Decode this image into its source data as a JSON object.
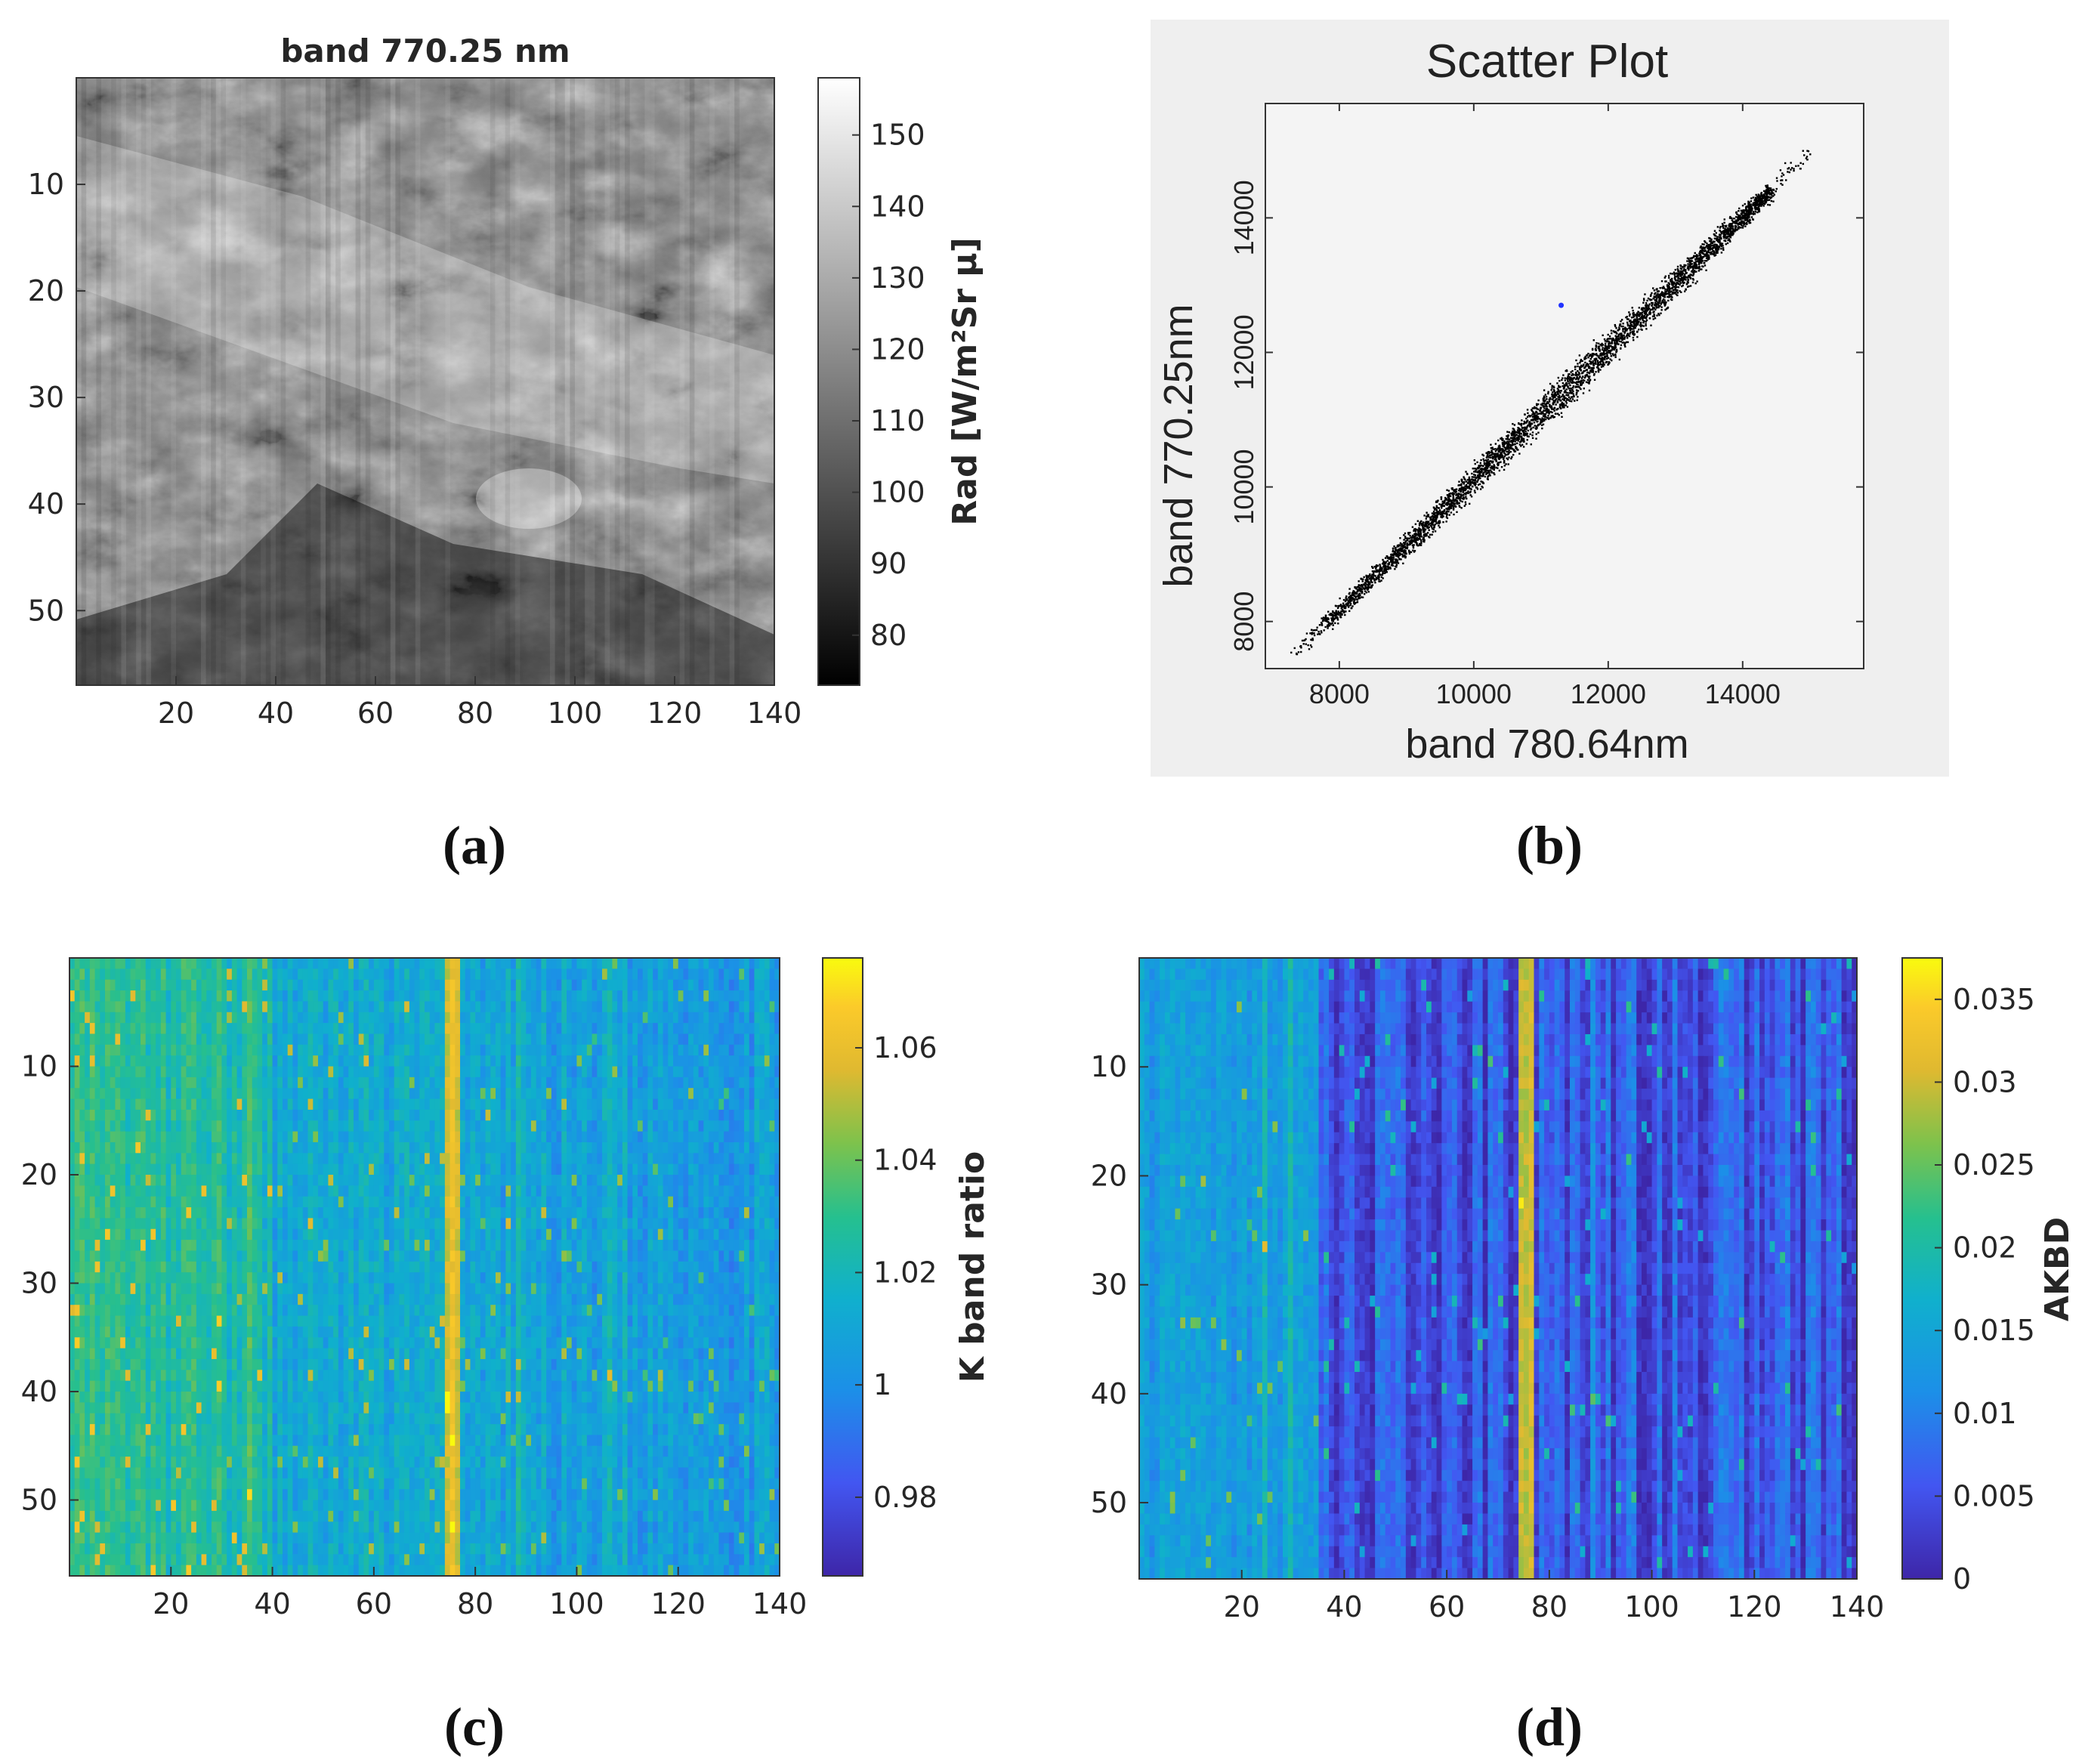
{
  "chart_data": [
    {
      "id": "a",
      "type": "heatmap",
      "title": "band 770.25 nm",
      "colormap": "gray",
      "x_ticks": [
        "20",
        "40",
        "60",
        "80",
        "100",
        "120",
        "140"
      ],
      "y_ticks": [
        "10",
        "20",
        "30",
        "40",
        "50"
      ],
      "xlim": [
        0,
        140
      ],
      "ylim": [
        0,
        57
      ],
      "colorbar": {
        "label": "Rad [W/m²Sr μ]",
        "ticks": [
          "80",
          "90",
          "100",
          "110",
          "120",
          "130",
          "140",
          "150"
        ],
        "range": [
          73,
          158
        ]
      }
    },
    {
      "id": "b",
      "type": "scatter",
      "title": "Scatter Plot",
      "xlabel": "band 780.64nm",
      "ylabel": "band 770.25nm",
      "x_ticks": [
        "8000",
        "10000",
        "12000",
        "14000"
      ],
      "y_ticks": [
        "8000",
        "10000",
        "12000",
        "14000"
      ],
      "xlim": [
        6900,
        15800
      ],
      "ylim": [
        7300,
        15700
      ],
      "trend": {
        "x_start": 7200,
        "y_start": 7400,
        "x_end": 15000,
        "y_end": 15000
      },
      "outlier": {
        "x": 11300,
        "y": 12700,
        "color": "#2233ff"
      }
    },
    {
      "id": "c",
      "type": "heatmap",
      "title": "",
      "colormap": "parula",
      "x_ticks": [
        "20",
        "40",
        "60",
        "80",
        "100",
        "120",
        "140"
      ],
      "y_ticks": [
        "10",
        "20",
        "30",
        "40",
        "50"
      ],
      "xlim": [
        0,
        140
      ],
      "ylim": [
        0,
        57
      ],
      "colorbar": {
        "label": "K band ratio",
        "ticks": [
          "0.98",
          "1",
          "1.02",
          "1.04",
          "1.06"
        ],
        "range": [
          0.966,
          1.076
        ]
      }
    },
    {
      "id": "d",
      "type": "heatmap",
      "title": "",
      "colormap": "parula",
      "x_ticks": [
        "20",
        "40",
        "60",
        "80",
        "100",
        "120",
        "140"
      ],
      "y_ticks": [
        "10",
        "20",
        "30",
        "40",
        "50"
      ],
      "xlim": [
        0,
        140
      ],
      "ylim": [
        0,
        57
      ],
      "colorbar": {
        "label": "AKBD",
        "ticks": [
          "0",
          "0.005",
          "0.01",
          "0.015",
          "0.02",
          "0.025",
          "0.03",
          "0.035"
        ],
        "range": [
          0,
          0.0375
        ]
      }
    }
  ],
  "captions": {
    "a": "(a)",
    "b": "(b)",
    "c": "(c)",
    "d": "(d)"
  }
}
